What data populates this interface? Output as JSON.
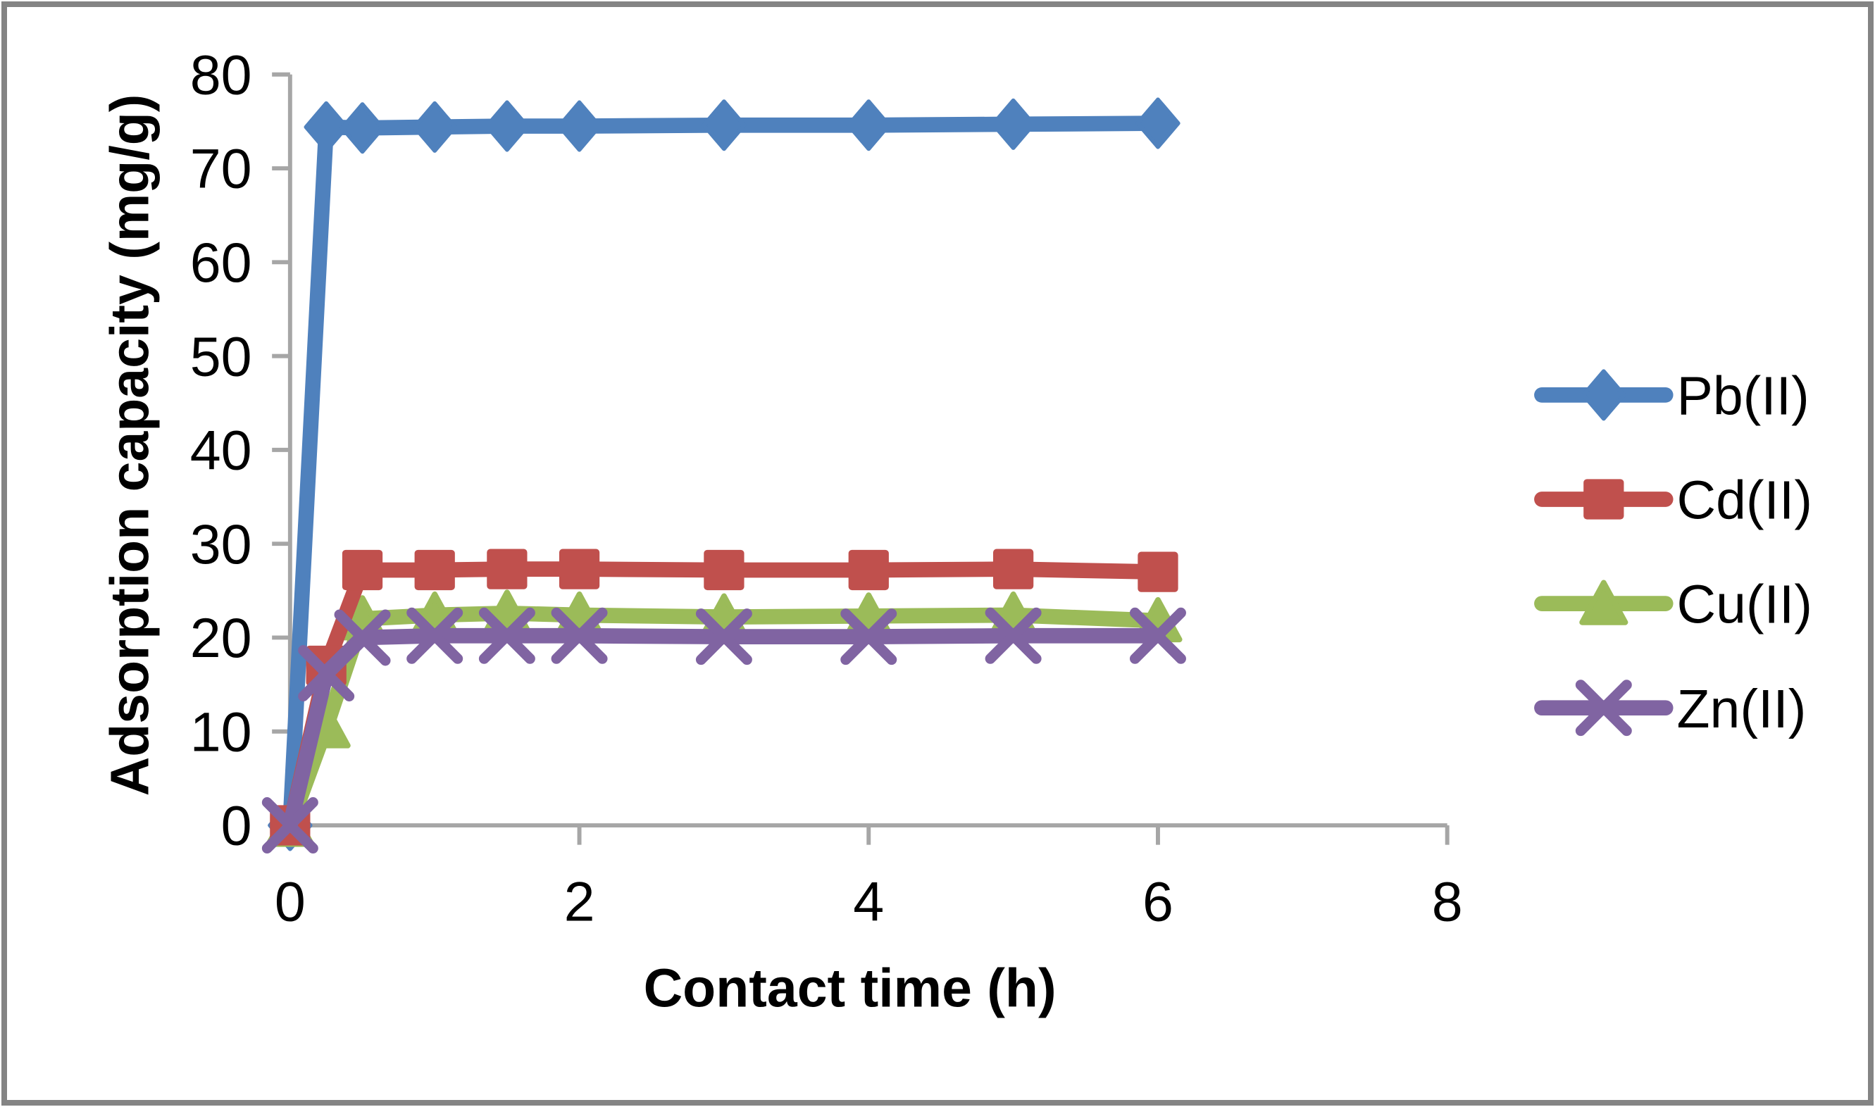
{
  "figure": {
    "frame_color": "#848484",
    "background": "#FFFFFF"
  },
  "chart_data": {
    "type": "line",
    "title": "",
    "xlabel": "Contact time (h)",
    "ylabel": "Adsorption capacity (mg/g)",
    "xlim": [
      0,
      8
    ],
    "ylim": [
      0,
      80
    ],
    "x_ticks": [
      0,
      2,
      4,
      6,
      8
    ],
    "y_ticks": [
      0,
      10,
      20,
      30,
      40,
      50,
      60,
      70,
      80
    ],
    "grid": false,
    "legend_position": "right",
    "axis_color": "#A6A6A6",
    "text_color": "#000000",
    "x": [
      0,
      0.25,
      0.5,
      1,
      1.5,
      2,
      3,
      4,
      5,
      6
    ],
    "series": [
      {
        "name": "Pb(II)",
        "color": "#4F81BD",
        "marker": "diamond",
        "values": [
          0,
          74.4,
          74.3,
          74.4,
          74.5,
          74.5,
          74.6,
          74.6,
          74.7,
          74.8
        ]
      },
      {
        "name": "Cd(II)",
        "color": "#C0504D",
        "marker": "square",
        "values": [
          0,
          17.0,
          27.2,
          27.2,
          27.3,
          27.3,
          27.2,
          27.2,
          27.3,
          27.0
        ]
      },
      {
        "name": "Cu(II)",
        "color": "#9BBB59",
        "marker": "triangle",
        "values": [
          0,
          10.5,
          22.0,
          22.4,
          22.6,
          22.4,
          22.2,
          22.3,
          22.4,
          21.8
        ]
      },
      {
        "name": "Zn(II)",
        "color": "#8064A2",
        "marker": "x",
        "values": [
          0,
          16.2,
          20.0,
          20.2,
          20.2,
          20.2,
          20.1,
          20.1,
          20.2,
          20.2
        ]
      }
    ],
    "draw_order": [
      "Pb(II)",
      "Cu(II)",
      "Cd(II)",
      "Zn(II)"
    ]
  }
}
